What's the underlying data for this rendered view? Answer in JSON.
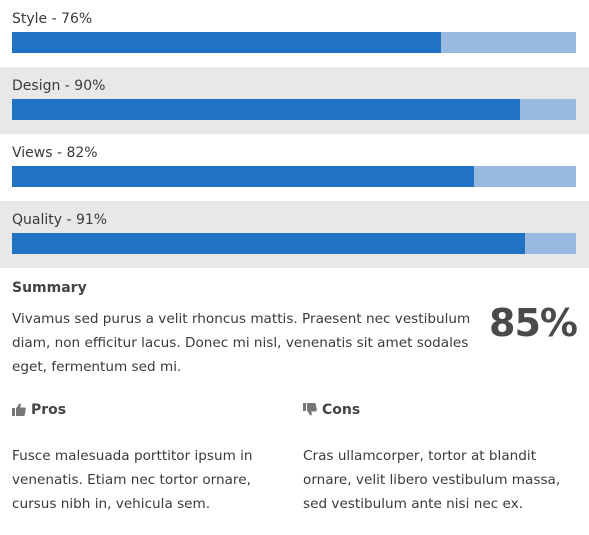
{
  "ratings": [
    {
      "label": "Style - 76%",
      "percent": 76
    },
    {
      "label": "Design - 90%",
      "percent": 90
    },
    {
      "label": "Views - 82%",
      "percent": 82
    },
    {
      "label": "Quality - 91%",
      "percent": 91
    }
  ],
  "colors": {
    "bar_fill": "#2073c3",
    "bar_track": "#98b9e0",
    "alt_row": "#e8e8e8"
  },
  "summary": {
    "title": "Summary",
    "text": "Vivamus sed purus a velit rhoncus mattis. Praesent nec vestibulum diam, non efficitur lacus. Donec mi nisl, venenatis sit amet sodales eget, fermentum sed mi.",
    "score": "85%"
  },
  "pros": {
    "icon": "thumbs-up-icon",
    "title": "Pros",
    "text": "Fusce malesuada porttitor ipsum in venenatis. Etiam nec tortor ornare, cursus nibh in, vehicula sem."
  },
  "cons": {
    "icon": "thumbs-down-icon",
    "title": "Cons",
    "text": "Cras ullamcorper, tortor at blandit ornare, velit libero vestibulum massa, sed vestibulum ante nisi nec ex."
  }
}
